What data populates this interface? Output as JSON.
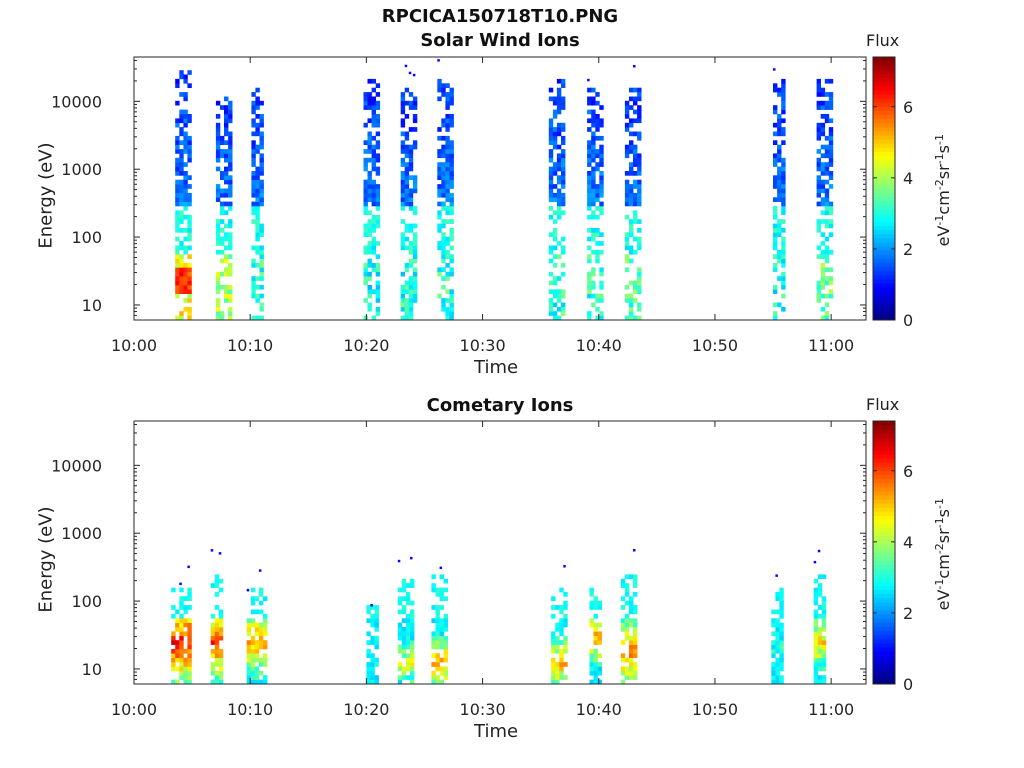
{
  "page_title": "RPCICA150718T10.PNG",
  "colorbar": {
    "title": "Flux",
    "unit_base": "eV",
    "unit_parts": [
      [
        "eV",
        "-1"
      ],
      [
        "cm",
        "-2"
      ],
      [
        "sr",
        "-1"
      ],
      [
        "s",
        "-1"
      ]
    ],
    "ticks": [
      "0",
      "2",
      "4",
      "6"
    ],
    "range": [
      0,
      7.4
    ],
    "colormap": "jet"
  },
  "chart_data": [
    {
      "type": "heatmap",
      "title": "Solar Wind Ions",
      "xlabel": "Time",
      "ylabel": "Energy (eV)",
      "x_ticks": [
        "10:00",
        "10:10",
        "10:20",
        "10:30",
        "10:40",
        "10:50",
        "11:00"
      ],
      "x_range_min": [
        0,
        63
      ],
      "y_ticks": [
        "10",
        "100",
        "1000",
        "10000"
      ],
      "y_scale": "log",
      "y_range": [
        6,
        45000
      ],
      "bursts": [
        {
          "t": 4.2,
          "w": 1.3,
          "emax": 30000,
          "lowflux": 5.2
        },
        {
          "t": 7.7,
          "w": 1.3,
          "emax": 12000,
          "lowflux": 4.6
        },
        {
          "t": 10.7,
          "w": 1.2,
          "emax": 15000,
          "lowflux": 3.8
        },
        {
          "t": 20.4,
          "w": 1.3,
          "emax": 20000,
          "lowflux": 3.6
        },
        {
          "t": 23.6,
          "w": 1.3,
          "emax": 15000,
          "lowflux": 3.6
        },
        {
          "t": 26.8,
          "w": 1.4,
          "emax": 20000,
          "lowflux": 3.8
        },
        {
          "t": 36.4,
          "w": 1.4,
          "emax": 20000,
          "lowflux": 3.8
        },
        {
          "t": 39.7,
          "w": 1.4,
          "emax": 15000,
          "lowflux": 3.8
        },
        {
          "t": 42.9,
          "w": 1.3,
          "emax": 15000,
          "lowflux": 4.0
        },
        {
          "t": 55.6,
          "w": 1.2,
          "emax": 20000,
          "lowflux": 3.6
        },
        {
          "t": 59.4,
          "w": 1.3,
          "emax": 20000,
          "lowflux": 4.2
        }
      ]
    },
    {
      "type": "heatmap",
      "title": "Cometary Ions",
      "xlabel": "Time",
      "ylabel": "Energy (eV)",
      "x_ticks": [
        "10:00",
        "10:10",
        "10:20",
        "10:30",
        "10:40",
        "10:50",
        "11:00"
      ],
      "x_range_min": [
        0,
        63
      ],
      "y_ticks": [
        "10",
        "100",
        "1000",
        "10000"
      ],
      "y_scale": "log",
      "y_range": [
        6,
        45000
      ],
      "bursts": [
        {
          "t": 4.0,
          "w": 1.6,
          "emax": 150,
          "peak": 7.0,
          "peak_e": 25
        },
        {
          "t": 7.2,
          "w": 1.2,
          "emax": 300,
          "peak": 6.6,
          "peak_e": 25
        },
        {
          "t": 10.5,
          "w": 1.6,
          "emax": 150,
          "peak": 6.0,
          "peak_e": 25
        },
        {
          "t": 20.6,
          "w": 1.2,
          "emax": 90,
          "peak": 3.2,
          "peak_e": 15
        },
        {
          "t": 23.4,
          "w": 1.4,
          "emax": 200,
          "peak": 5.0,
          "peak_e": 12
        },
        {
          "t": 26.3,
          "w": 1.4,
          "emax": 250,
          "peak": 5.8,
          "peak_e": 12
        },
        {
          "t": 36.6,
          "w": 1.4,
          "emax": 150,
          "peak": 5.6,
          "peak_e": 12
        },
        {
          "t": 39.8,
          "w": 1.2,
          "emax": 150,
          "peak": 5.8,
          "peak_e": 30
        },
        {
          "t": 42.6,
          "w": 1.4,
          "emax": 250,
          "peak": 6.2,
          "peak_e": 18
        },
        {
          "t": 55.3,
          "w": 0.9,
          "emax": 150,
          "peak": 3.6,
          "peak_e": 20
        },
        {
          "t": 59.0,
          "w": 1.0,
          "emax": 250,
          "peak": 5.4,
          "peak_e": 25
        }
      ]
    }
  ]
}
